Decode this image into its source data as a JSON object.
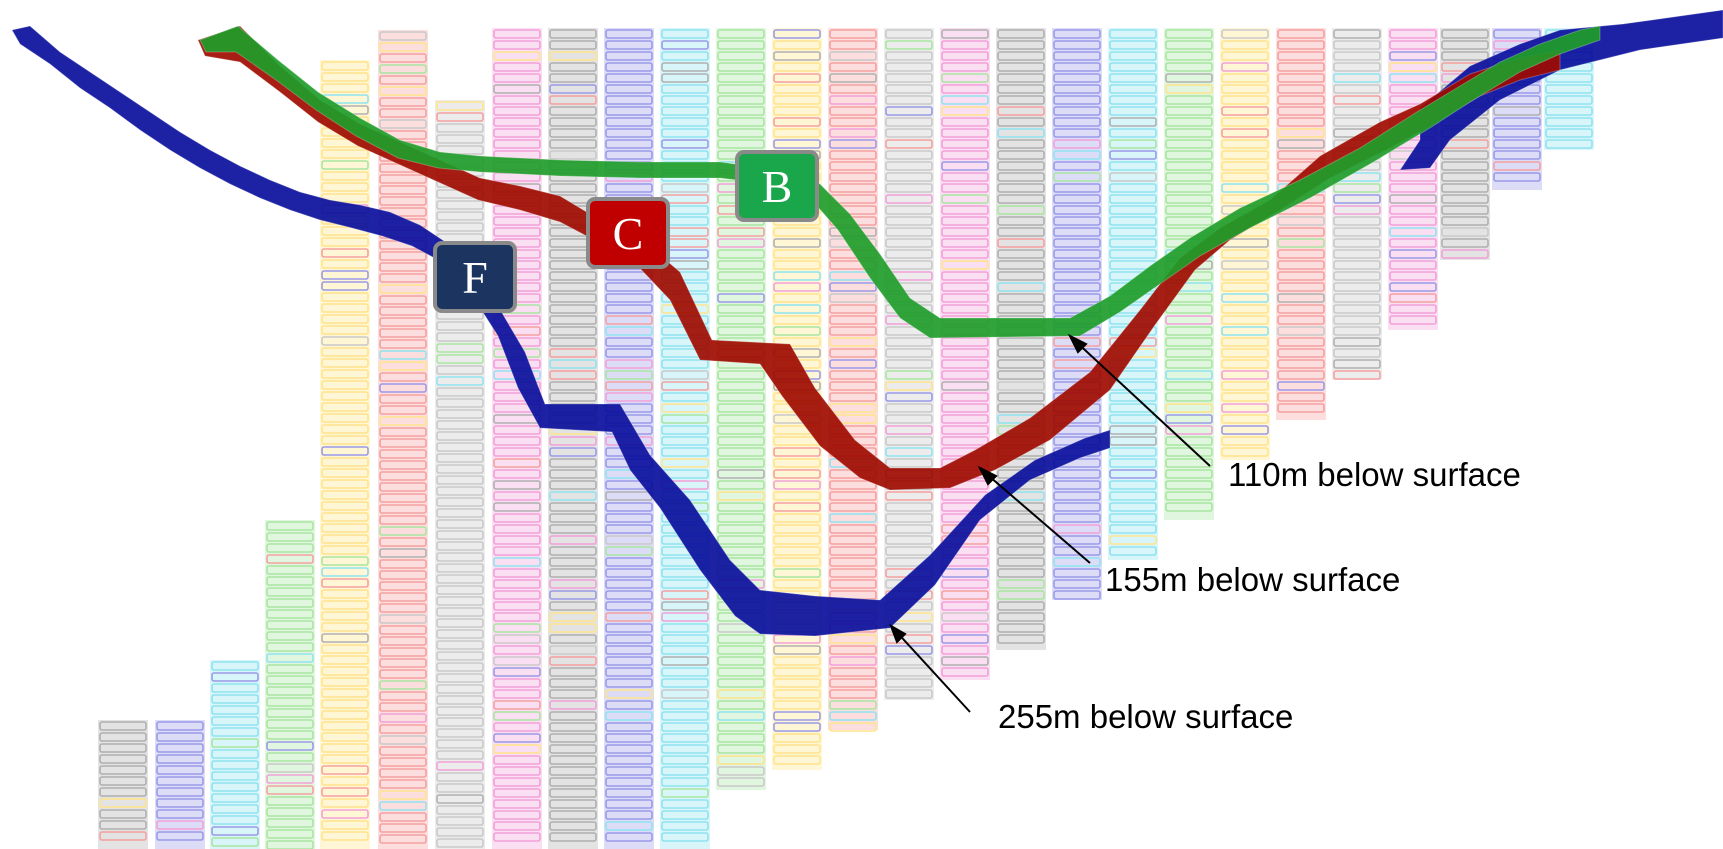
{
  "colors": {
    "route_b": "#1f9d2a",
    "route_c": "#9e0b00",
    "route_f": "#0a0f9c",
    "badge_b": "#1aa64a",
    "badge_c": "#c00000",
    "badge_f": "#1b3460",
    "badge_border": "#8a8a8a",
    "block_palette": [
      "#b0b0b0",
      "#9a9ae8",
      "#8fe3f0",
      "#a8e6a0",
      "#ffe48a",
      "#f5a0a0",
      "#c9c9c9",
      "#f2a0d8"
    ]
  },
  "routes": [
    {
      "id": "B",
      "label": "B",
      "color_key": "route_b"
    },
    {
      "id": "C",
      "label": "C",
      "color_key": "route_c"
    },
    {
      "id": "F",
      "label": "F",
      "color_key": "route_f"
    }
  ],
  "callouts": [
    {
      "id": "b",
      "text": "110m below surface"
    },
    {
      "id": "c",
      "text": "155m below surface"
    },
    {
      "id": "f",
      "text": "255m below surface"
    }
  ]
}
